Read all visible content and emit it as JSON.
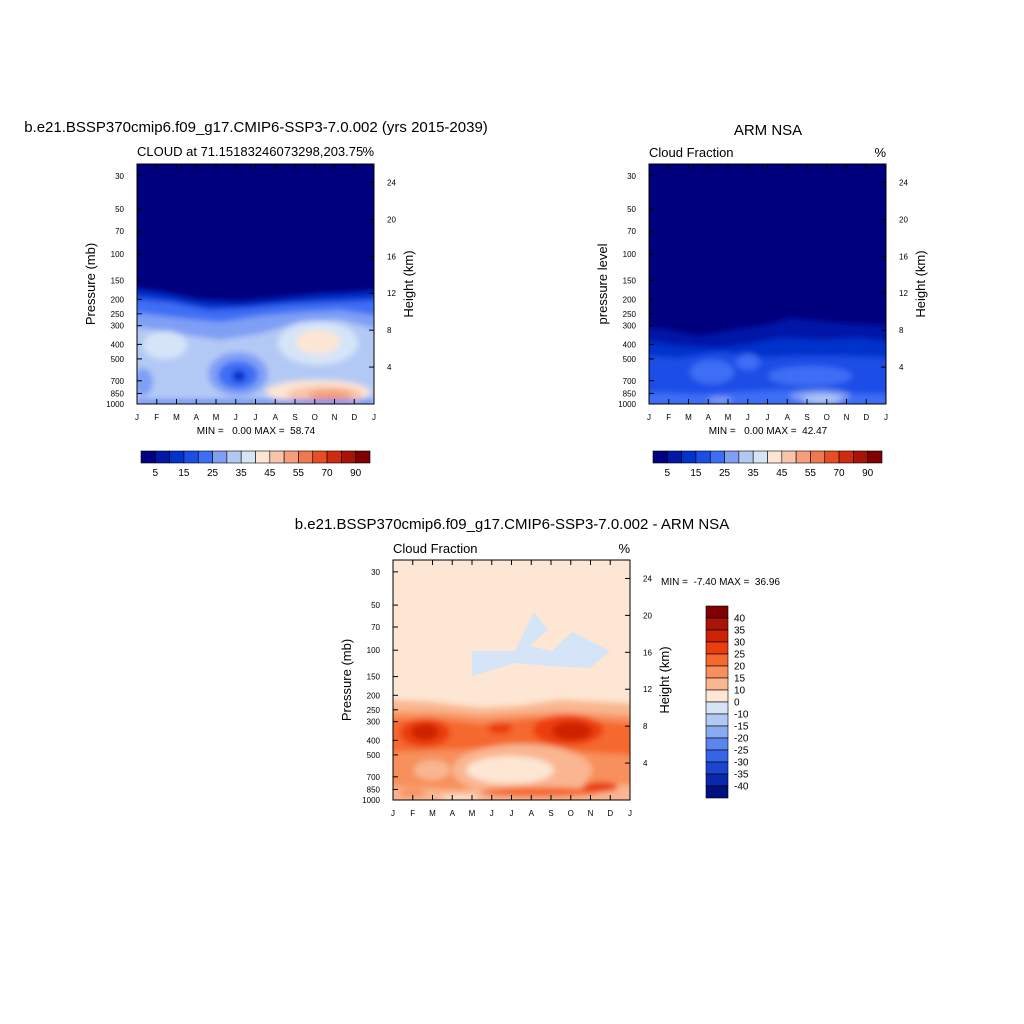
{
  "chart_data": [
    {
      "type": "heatmap",
      "title": "b.e21.BSSP370cmip6.f09_g17.CMIP6-SSP3-7.0.002 (yrs 2015-2039)",
      "subtitle": "CLOUD at 71.15183246073298,203.75",
      "units": "%",
      "ylabel": "Pressure (mb)",
      "ylabel_right": "Height (km)",
      "x_ticks": [
        "J",
        "F",
        "M",
        "A",
        "M",
        "J",
        "J",
        "A",
        "S",
        "O",
        "N",
        "D",
        "J"
      ],
      "y_ticks": [
        "30",
        "50",
        "70",
        "100",
        "150",
        "200",
        "250",
        "300",
        "400",
        "500",
        "700",
        "850",
        "1000"
      ],
      "y_ticks_right": [
        "24",
        "20",
        "16",
        "12",
        "8",
        "4"
      ],
      "stats_text": "MIN =   0.00 MAX =  58.74",
      "min": 0.0,
      "max": 58.74,
      "colorbar_labels": [
        "5",
        "15",
        "25",
        "35",
        "45",
        "55",
        "70",
        "90"
      ]
    },
    {
      "type": "heatmap",
      "title": "ARM NSA",
      "subtitle": "Cloud Fraction",
      "units": "%",
      "ylabel": "pressure level",
      "ylabel_right": "Height (km)",
      "x_ticks": [
        "J",
        "F",
        "M",
        "A",
        "M",
        "J",
        "J",
        "A",
        "S",
        "O",
        "N",
        "D",
        "J"
      ],
      "y_ticks": [
        "30",
        "50",
        "70",
        "100",
        "150",
        "200",
        "250",
        "300",
        "400",
        "500",
        "700",
        "850",
        "1000"
      ],
      "y_ticks_right": [
        "24",
        "20",
        "16",
        "12",
        "8",
        "4"
      ],
      "stats_text": "MIN =   0.00 MAX =  42.47",
      "min": 0.0,
      "max": 42.47,
      "colorbar_labels": [
        "5",
        "15",
        "25",
        "35",
        "45",
        "55",
        "70",
        "90"
      ]
    },
    {
      "type": "heatmap",
      "title": "b.e21.BSSP370cmip6.f09_g17.CMIP6-SSP3-7.0.002 - ARM NSA",
      "subtitle": "Cloud Fraction",
      "units": "%",
      "ylabel": "Pressure (mb)",
      "ylabel_right": "Height (km)",
      "x_ticks": [
        "J",
        "F",
        "M",
        "A",
        "M",
        "J",
        "J",
        "A",
        "S",
        "O",
        "N",
        "D",
        "J"
      ],
      "y_ticks": [
        "30",
        "50",
        "70",
        "100",
        "150",
        "200",
        "250",
        "300",
        "400",
        "500",
        "700",
        "850",
        "1000"
      ],
      "y_ticks_right": [
        "24",
        "20",
        "16",
        "12",
        "8",
        "4"
      ],
      "stats_text": "MIN =  -7.40 MAX =  36.96",
      "min": -7.4,
      "max": 36.96,
      "colorbar_labels": [
        "40",
        "35",
        "30",
        "25",
        "20",
        "15",
        "10",
        "0",
        "-10",
        "-15",
        "-20",
        "-25",
        "-30",
        "-35",
        "-40"
      ]
    }
  ],
  "colors": {
    "seq": [
      "#00007f",
      "#0018a8",
      "#0033cc",
      "#1a4ee6",
      "#3d6ef5",
      "#7f9ff5",
      "#b3c9f5",
      "#d6e4f8",
      "#fde5d3",
      "#f9c4a8",
      "#f59f7d",
      "#f07850",
      "#e84d24",
      "#d02a10",
      "#a81408",
      "#7f0000"
    ],
    "div": [
      "#7f0000",
      "#a81408",
      "#cc2206",
      "#ec3e0c",
      "#f5682e",
      "#f7905c",
      "#f9b690",
      "#fde6d3",
      "#d6e4f8",
      "#b3c9f5",
      "#8aaaf2",
      "#5b86ef",
      "#3565e6",
      "#1b45d0",
      "#0a28ac",
      "#00117f"
    ]
  }
}
